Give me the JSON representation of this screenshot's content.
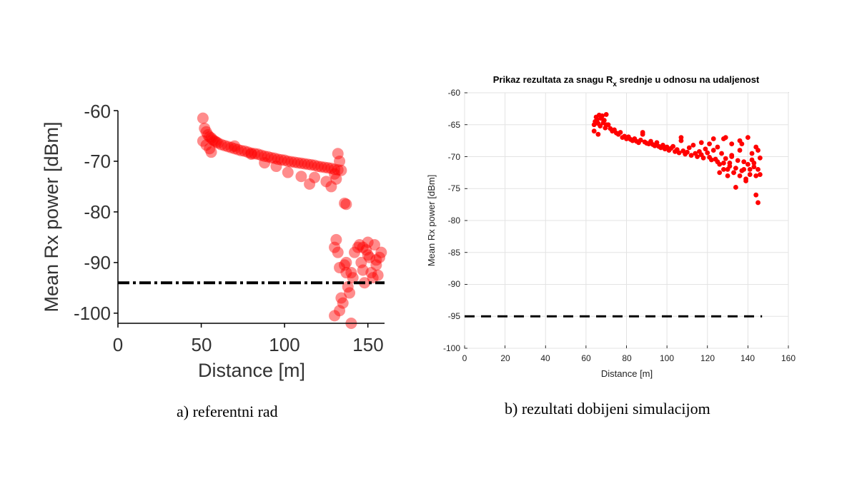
{
  "captions": {
    "a": "a) referentni rad",
    "b": "b) rezultati dobijeni simulacijom"
  },
  "chart_data": [
    {
      "type": "scatter",
      "title": "",
      "xlabel": "Distance [m]",
      "ylabel": "Mean Rx power [dBm]",
      "xlim": [
        0,
        160
      ],
      "ylim": [
        -102,
        -60
      ],
      "xticks": [
        0,
        50,
        100,
        150
      ],
      "yticks": [
        -60,
        -70,
        -80,
        -90,
        -100
      ],
      "grid": false,
      "marker_color": "#ff0000",
      "marker_alpha": 0.45,
      "threshold": {
        "y": -94,
        "style": "dash-dot",
        "color": "#000000"
      },
      "x": [
        51,
        52,
        53,
        54,
        55,
        56,
        57,
        58,
        59,
        60,
        62,
        64,
        66,
        68,
        70,
        72,
        74,
        76,
        78,
        80,
        82,
        84,
        86,
        88,
        90,
        92,
        94,
        96,
        98,
        100,
        102,
        104,
        106,
        108,
        110,
        112,
        114,
        116,
        118,
        120,
        122,
        124,
        126,
        128,
        130,
        132,
        134,
        51,
        53,
        55,
        56,
        70,
        80,
        88,
        95,
        102,
        110,
        115,
        118,
        125,
        128,
        130,
        131,
        132,
        133,
        136,
        137,
        130,
        131,
        132,
        133,
        134,
        135,
        136,
        137,
        138,
        139,
        140,
        141,
        142,
        144,
        145,
        146,
        147,
        148,
        149,
        150,
        151,
        152,
        153,
        154,
        155,
        156,
        157,
        158,
        130,
        133,
        137,
        140,
        147,
        150,
        155
      ],
      "y": [
        -61.5,
        -63.5,
        -64.2,
        -64.8,
        -65.2,
        -65.4,
        -65.8,
        -66,
        -66.2,
        -66.4,
        -66.7,
        -66.9,
        -67.1,
        -67.3,
        -67.5,
        -67.7,
        -67.9,
        -68,
        -68.2,
        -68.4,
        -68.5,
        -68.6,
        -68.8,
        -69,
        -69.1,
        -69.3,
        -69.4,
        -69.6,
        -69.7,
        -69.8,
        -70,
        -70.1,
        -70.2,
        -70.3,
        -70.4,
        -70.5,
        -70.6,
        -70.7,
        -70.8,
        -71,
        -71.1,
        -71.2,
        -71.3,
        -71.4,
        -71.6,
        -71.7,
        -71.8,
        -66,
        -66.8,
        -67.5,
        -68.2,
        -67,
        -68.6,
        -70.3,
        -71,
        -72.2,
        -73,
        -74.5,
        -73.2,
        -74,
        -75,
        -72.5,
        -73.5,
        -68.5,
        -70,
        -78.3,
        -78.5,
        -87,
        -85.5,
        -88,
        -91,
        -97,
        -98,
        -90.5,
        -92,
        -94.8,
        -96,
        -102,
        -93,
        -88,
        -87,
        -86.5,
        -90,
        -91.5,
        -94,
        -87.5,
        -86,
        -89,
        -92,
        -93,
        -86.5,
        -90.5,
        -92.5,
        -89,
        -88,
        -100.5,
        -99.5,
        -90,
        -92,
        -87,
        -88.5,
        -89.5
      ],
      "x_label_0": "0",
      "x_label_1": "50",
      "x_label_2": "100",
      "x_label_3": "150",
      "y_label_0": "-60",
      "y_label_1": "-70",
      "y_label_2": "-80",
      "y_label_3": "-90",
      "y_label_4": "-100"
    },
    {
      "type": "scatter",
      "title": "Prikaz rezultata za snagu R",
      "title_sub": "x",
      "title_rest": " srednje u odnosu na udaljenost",
      "xlabel": "Distance [m]",
      "ylabel": "Mean Rx power [dBm]",
      "xlim": [
        0,
        160
      ],
      "ylim": [
        -100,
        -60
      ],
      "xticks": [
        0,
        20,
        40,
        60,
        80,
        100,
        120,
        140,
        160
      ],
      "yticks": [
        -60,
        -65,
        -70,
        -75,
        -80,
        -85,
        -90,
        -95,
        -100
      ],
      "grid": true,
      "marker_color": "#ff0000",
      "marker_alpha": 1,
      "threshold": {
        "y": -95,
        "x_range": [
          0,
          147
        ],
        "style": "dash",
        "color": "#000000"
      },
      "x": [
        64,
        64.5,
        65,
        65.5,
        66,
        66.5,
        67,
        67.5,
        68,
        68.5,
        69,
        69.5,
        70,
        71,
        72,
        73,
        74,
        75,
        76,
        77,
        78,
        79,
        80,
        81,
        82,
        83,
        84,
        85,
        86,
        87,
        88,
        89,
        90,
        91,
        92,
        93,
        94,
        95,
        96,
        97,
        98,
        99,
        100,
        101,
        102,
        103,
        104,
        105,
        106,
        107,
        108,
        109,
        110,
        111,
        112,
        113,
        114,
        115,
        116,
        117,
        118,
        119,
        120,
        121,
        122,
        123,
        124,
        125,
        126,
        127,
        128,
        129,
        130,
        131,
        132,
        133,
        134,
        135,
        136,
        137,
        138,
        139,
        140,
        141,
        142,
        143,
        144,
        145,
        146,
        64,
        66,
        70,
        88,
        107,
        117,
        121,
        123,
        125,
        126,
        128,
        129,
        130,
        131,
        132,
        133,
        134,
        136,
        137,
        138,
        139,
        141,
        142,
        143,
        144,
        145,
        145,
        146,
        128,
        132,
        136,
        140,
        144
      ],
      "y": [
        -65,
        -64.5,
        -63.8,
        -64.2,
        -64.8,
        -63.5,
        -65.2,
        -64,
        -63.6,
        -64.7,
        -64.3,
        -65.5,
        -63.4,
        -65,
        -65.6,
        -66,
        -65.8,
        -66.3,
        -66.5,
        -66.2,
        -67,
        -66.8,
        -67.2,
        -66.9,
        -67.3,
        -67.5,
        -67.2,
        -67.6,
        -67.8,
        -67.4,
        -66.5,
        -67.7,
        -67.9,
        -68,
        -67.6,
        -68.1,
        -68.3,
        -67.8,
        -68.4,
        -68.6,
        -68.2,
        -68.8,
        -68.5,
        -69,
        -68.7,
        -68.4,
        -69.2,
        -68.9,
        -69.4,
        -67.5,
        -69.1,
        -69.6,
        -69.3,
        -68.6,
        -69.8,
        -68.2,
        -69.5,
        -70,
        -69.2,
        -69.7,
        -70.2,
        -68.8,
        -69.4,
        -70.1,
        -70.5,
        -69,
        -70.4,
        -70.8,
        -71.2,
        -69.5,
        -71,
        -70.3,
        -72,
        -71.5,
        -69.8,
        -72.5,
        -71.8,
        -70.6,
        -73,
        -72.2,
        -70.8,
        -73.5,
        -71.2,
        -72.8,
        -70.5,
        -71.6,
        -73,
        -72,
        -70.2,
        -66,
        -66.5,
        -65,
        -66.2,
        -67,
        -67.8,
        -68,
        -67.2,
        -68.5,
        -72.5,
        -72,
        -67,
        -73,
        -71,
        -70,
        -72.5,
        -74.8,
        -69,
        -68,
        -72,
        -73.8,
        -72,
        -69.5,
        -71,
        -76,
        -77.2,
        -69,
        -72.8,
        -67.2,
        -68,
        -67.5,
        -67,
        -68.5
      ],
      "x_label_0": "0",
      "x_label_1": "20",
      "x_label_2": "40",
      "x_label_3": "60",
      "x_label_4": "80",
      "x_label_5": "100",
      "x_label_6": "120",
      "x_label_7": "140",
      "x_label_8": "160",
      "y_label_0": "-60",
      "y_label_1": "-65",
      "y_label_2": "-70",
      "y_label_3": "-75",
      "y_label_4": "-80",
      "y_label_5": "-85",
      "y_label_6": "-90",
      "y_label_7": "-95",
      "y_label_8": "-100"
    }
  ]
}
